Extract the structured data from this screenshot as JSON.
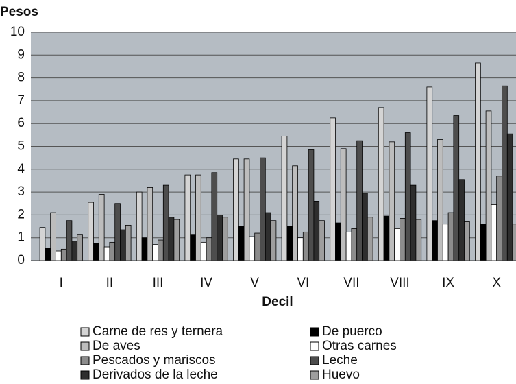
{
  "chart_data": {
    "type": "bar",
    "y_axis_label": "Pesos",
    "x_axis_label": "Decil",
    "categories": [
      "I",
      "II",
      "III",
      "IV",
      "V",
      "VI",
      "VII",
      "VIII",
      "IX",
      "X"
    ],
    "series": [
      {
        "name": "Carne de res y ternera",
        "color": "#d4d4d4",
        "values": [
          1.45,
          2.55,
          3.0,
          3.75,
          4.45,
          5.45,
          6.25,
          6.7,
          7.6,
          8.65
        ]
      },
      {
        "name": "De puerco",
        "color": "#000000",
        "values": [
          0.55,
          0.75,
          1.0,
          1.15,
          1.5,
          1.5,
          1.65,
          1.95,
          1.75,
          1.6
        ]
      },
      {
        "name": "De aves",
        "color": "#bdbdbd",
        "values": [
          2.1,
          2.9,
          3.2,
          3.75,
          4.45,
          4.15,
          4.9,
          5.2,
          5.3,
          6.55
        ]
      },
      {
        "name": "Otras carnes",
        "color": "#ffffff",
        "values": [
          0.42,
          0.6,
          0.7,
          0.8,
          1.05,
          1.0,
          1.25,
          1.4,
          1.6,
          2.45
        ]
      },
      {
        "name": "Pescados y mariscos",
        "color": "#8c8c8c",
        "values": [
          0.5,
          0.8,
          0.9,
          1.0,
          1.2,
          1.25,
          1.4,
          1.85,
          2.1,
          3.7
        ]
      },
      {
        "name": "Leche",
        "color": "#4d4d4d",
        "values": [
          1.75,
          2.5,
          3.3,
          3.85,
          4.5,
          4.85,
          5.25,
          5.6,
          6.35,
          7.65
        ]
      },
      {
        "name": "Derivados de la leche",
        "color": "#2e2e2e",
        "values": [
          0.85,
          1.35,
          1.9,
          2.0,
          2.1,
          2.6,
          2.95,
          3.3,
          3.55,
          5.55
        ]
      },
      {
        "name": "Huevo",
        "color": "#9e9e9e",
        "values": [
          1.15,
          1.55,
          1.8,
          1.9,
          1.75,
          1.75,
          1.9,
          1.8,
          1.7,
          1.6
        ]
      }
    ],
    "ylim": [
      0,
      10
    ],
    "yticks": [
      0,
      1,
      2,
      3,
      4,
      5,
      6,
      7,
      8,
      9,
      10
    ],
    "grid": true
  }
}
